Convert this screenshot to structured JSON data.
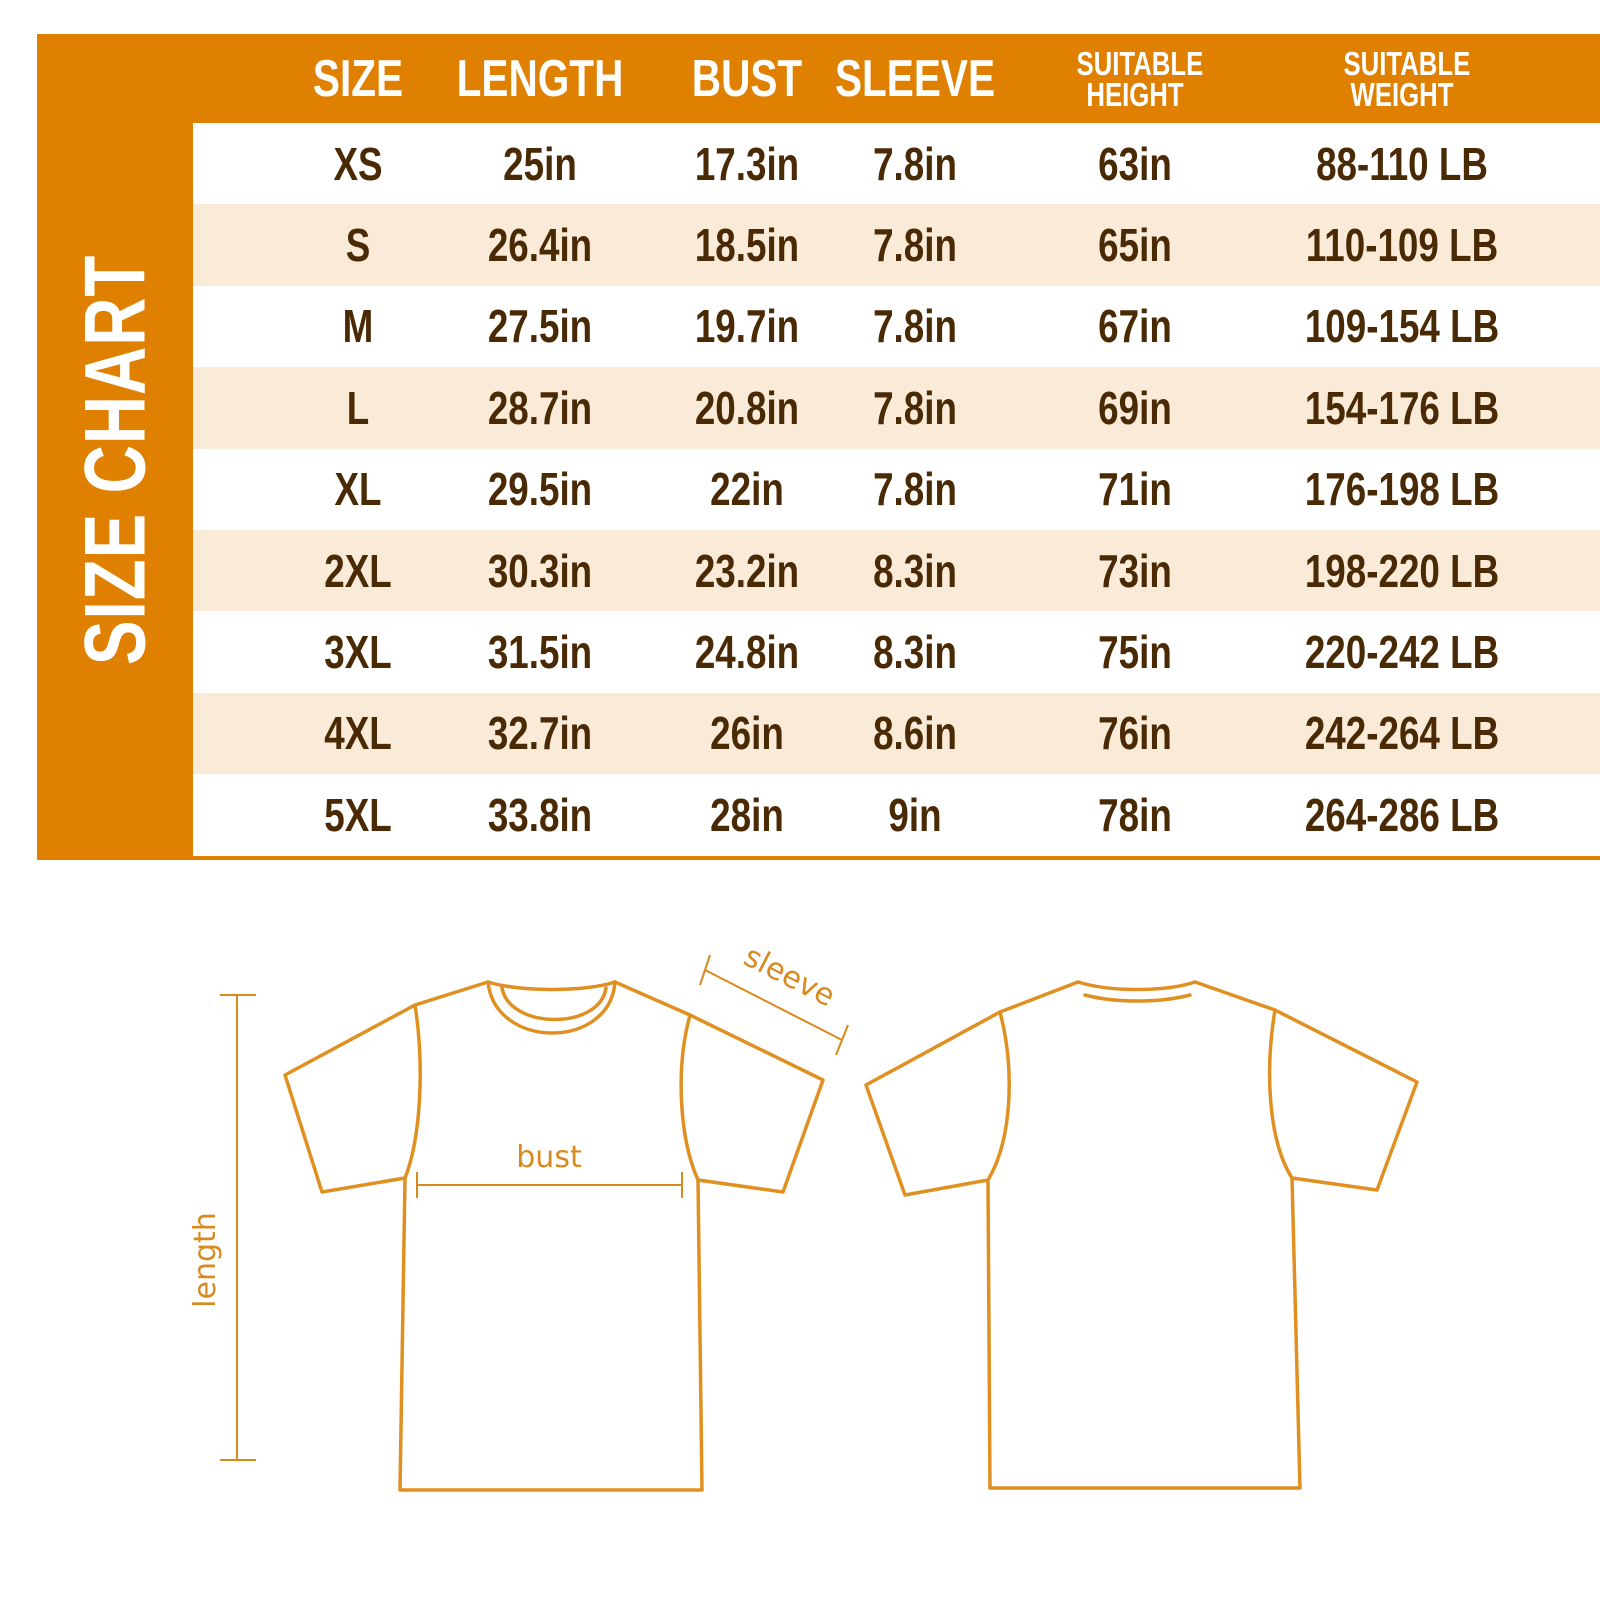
{
  "title": "SIZE CHART",
  "colors": {
    "accent": "#E08000",
    "text": "#4A2A05",
    "row_alt": "#FAEAD8",
    "outline": "#E09020"
  },
  "headers": [
    {
      "key": "size",
      "label": "SIZE"
    },
    {
      "key": "length",
      "label": "LENGTH"
    },
    {
      "key": "bust",
      "label": "BUST"
    },
    {
      "key": "sleeve",
      "label": "SLEEVE"
    },
    {
      "key": "height",
      "label": "SUITABLE HEIGHT"
    },
    {
      "key": "weight",
      "label": "SUITABLE WEIGHT"
    }
  ],
  "rows": [
    [
      "XS",
      "25in",
      "17.3in",
      "7.8in",
      "63in",
      "88-110 LB"
    ],
    [
      "S",
      "26.4in",
      "18.5in",
      "7.8in",
      "65in",
      "110-109 LB"
    ],
    [
      "M",
      "27.5in",
      "19.7in",
      "7.8in",
      "67in",
      "109-154 LB"
    ],
    [
      "L",
      "28.7in",
      "20.8in",
      "7.8in",
      "69in",
      "154-176 LB"
    ],
    [
      "XL",
      "29.5in",
      "22in",
      "7.8in",
      "71in",
      "176-198 LB"
    ],
    [
      "2XL",
      "30.3in",
      "23.2in",
      "8.3in",
      "73in",
      "198-220 LB"
    ],
    [
      "3XL",
      "31.5in",
      "24.8in",
      "8.3in",
      "75in",
      "220-242 LB"
    ],
    [
      "4XL",
      "32.7in",
      "26in",
      "8.6in",
      "76in",
      "242-264 LB"
    ],
    [
      "5XL",
      "33.8in",
      "28in",
      "9in",
      "78in",
      "264-286 LB"
    ]
  ],
  "diagram": {
    "sleeve_label": "sleeve",
    "bust_label": "bust",
    "length_label": "length"
  }
}
